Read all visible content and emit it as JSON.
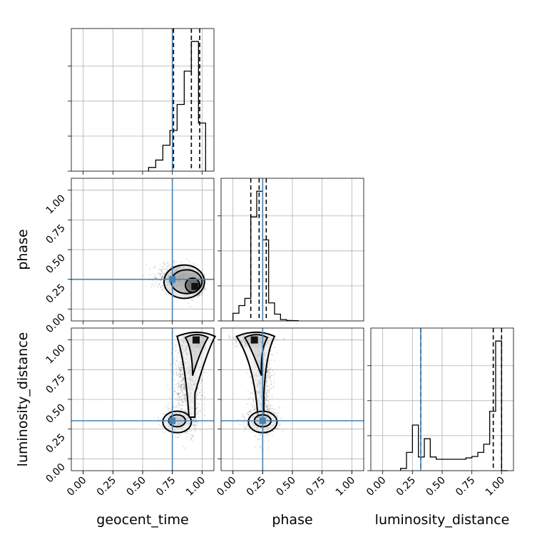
{
  "chart_data": {
    "type": "corner",
    "parameters": [
      "geocent_time",
      "phase",
      "luminosity_distance"
    ],
    "axis_labels": {
      "x": [
        "geocent_time",
        "phase",
        "luminosity_distance"
      ],
      "y": [
        "phase",
        "luminosity_distance"
      ]
    },
    "range": [
      0,
      1.0
    ],
    "ticks": [
      0.0,
      0.25,
      0.5,
      0.75,
      1.0
    ],
    "tick_labels": [
      "0.00",
      "0.25",
      "0.50",
      "0.75",
      "1.00"
    ],
    "grid": true,
    "truths": {
      "geocent_time": 0.75,
      "phase": 0.25,
      "luminosity_distance": 0.32
    },
    "truth_color": "#4682b4",
    "line_color": "#000000",
    "quantiles": {
      "geocent_time": [
        0.76,
        0.91,
        0.98
      ],
      "phase": [
        0.15,
        0.22,
        0.28
      ],
      "luminosity_distance": [
        0.32,
        0.93,
        1.0
      ]
    },
    "marginals": [
      {
        "parameter": "geocent_time",
        "bin_edges": [
          0.55,
          0.61,
          0.67,
          0.73,
          0.79,
          0.85,
          0.91,
          0.97,
          1.03
        ],
        "counts": [
          1,
          3,
          7,
          11,
          18,
          27,
          35,
          13
        ]
      },
      {
        "parameter": "phase",
        "bin_edges": [
          0.0,
          0.05,
          0.1,
          0.15,
          0.2,
          0.25,
          0.3,
          0.35,
          0.4,
          0.45,
          0.5,
          0.55
        ],
        "counts": [
          1.7,
          3.4,
          5.0,
          23.1,
          28.8,
          18.0,
          4.0,
          1.5,
          0.3,
          0.1,
          0.05
        ]
      },
      {
        "parameter": "luminosity_distance",
        "bin_edges": [
          0.15,
          0.2,
          0.25,
          0.3,
          0.35,
          0.4,
          0.45,
          0.5,
          0.55,
          0.6,
          0.65,
          0.7,
          0.75,
          0.8,
          0.85,
          0.9,
          0.95,
          1.0,
          1.05
        ],
        "counts": [
          0.5,
          4,
          10,
          3,
          7,
          3,
          2.5,
          2.5,
          2.5,
          2.5,
          2.5,
          2.8,
          3.1,
          4,
          5.8,
          13,
          28.4,
          0
        ]
      }
    ],
    "joint": [
      {
        "x_param": "geocent_time",
        "y_param": "phase",
        "modes": [
          {
            "x": 0.93,
            "y": 0.2,
            "sx": 0.045,
            "sy": 0.045,
            "n": 900
          },
          {
            "x": 0.8,
            "y": 0.27,
            "sx": 0.08,
            "sy": 0.05,
            "n": 1100
          }
        ],
        "peak": {
          "x": 0.94,
          "y": 0.19
        },
        "contours": [
          {
            "cx": 0.85,
            "cy": 0.23,
            "rx": 0.17,
            "ry": 0.14
          },
          {
            "cx": 0.87,
            "cy": 0.23,
            "rx": 0.13,
            "ry": 0.1
          },
          {
            "cx": 0.92,
            "cy": 0.2,
            "rx": 0.06,
            "ry": 0.06
          }
        ]
      },
      {
        "x_param": "geocent_time",
        "y_param": "luminosity_distance",
        "modes": [
          {
            "x": 0.95,
            "y": 1.0,
            "sx": 0.06,
            "sy": 0.05,
            "n": 900
          },
          {
            "x": 0.88,
            "y": 0.65,
            "sx": 0.06,
            "sy": 0.2,
            "n": 900
          },
          {
            "x": 0.8,
            "y": 0.32,
            "sx": 0.07,
            "sy": 0.04,
            "n": 500
          }
        ],
        "peak": {
          "x": 0.95,
          "y": 1.0
        },
        "contours": []
      },
      {
        "x_param": "phase",
        "y_param": "luminosity_distance",
        "modes": [
          {
            "x": 0.18,
            "y": 1.0,
            "sx": 0.07,
            "sy": 0.03,
            "n": 900
          },
          {
            "x": 0.24,
            "y": 0.65,
            "sx": 0.04,
            "sy": 0.2,
            "n": 900
          },
          {
            "x": 0.25,
            "y": 0.32,
            "sx": 0.07,
            "sy": 0.05,
            "n": 500
          }
        ],
        "peak": {
          "x": 0.18,
          "y": 1.0
        },
        "contours": []
      }
    ]
  }
}
